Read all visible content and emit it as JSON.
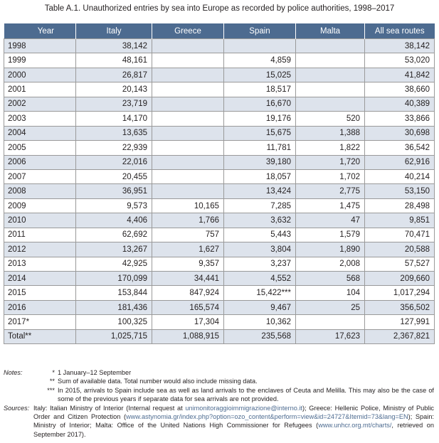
{
  "caption": "Table A.1. Unauthorized entries by sea into Europe as recorded by police authorities, 1998–2017",
  "columns": [
    "Year",
    "Italy",
    "Greece",
    "Spain",
    "Malta",
    "All sea routes"
  ],
  "rows": [
    [
      "1998",
      "38,142",
      "",
      "",
      "",
      "38,142"
    ],
    [
      "1999",
      "48,161",
      "",
      "4,859",
      "",
      "53,020"
    ],
    [
      "2000",
      "26,817",
      "",
      "15,025",
      "",
      "41,842"
    ],
    [
      "2001",
      "20,143",
      "",
      "18,517",
      "",
      "38,660"
    ],
    [
      "2002",
      "23,719",
      "",
      "16,670",
      "",
      "40,389"
    ],
    [
      "2003",
      "14,170",
      "",
      "19,176",
      "520",
      "33,866"
    ],
    [
      "2004",
      "13,635",
      "",
      "15,675",
      "1,388",
      "30,698"
    ],
    [
      "2005",
      "22,939",
      "",
      "11,781",
      "1,822",
      "36,542"
    ],
    [
      "2006",
      "22,016",
      "",
      "39,180",
      "1,720",
      "62,916"
    ],
    [
      "2007",
      "20,455",
      "",
      "18,057",
      "1,702",
      "40,214"
    ],
    [
      "2008",
      "36,951",
      "",
      "13,424",
      "2,775",
      "53,150"
    ],
    [
      "2009",
      "9,573",
      "10,165",
      "7,285",
      "1,475",
      "28,498"
    ],
    [
      "2010",
      "4,406",
      "1,766",
      "3,632",
      "47",
      "9,851"
    ],
    [
      "2011",
      "62,692",
      "757",
      "5,443",
      "1,579",
      "70,471"
    ],
    [
      "2012",
      "13,267",
      "1,627",
      "3,804",
      "1,890",
      "20,588"
    ],
    [
      "2013",
      "42,925",
      "9,357",
      "3,237",
      "2,008",
      "57,527"
    ],
    [
      "2014",
      "170,099",
      "34,441",
      "4,552",
      "568",
      "209,660"
    ],
    [
      "2015",
      "153,844",
      "847,924",
      "15,422***",
      "104",
      "1,017,294"
    ],
    [
      "2016",
      "181,436",
      "165,574",
      "9,467",
      "25",
      "356,502"
    ],
    [
      "2017*",
      "100,325",
      "17,304",
      "10,362",
      "",
      "127,991"
    ],
    [
      "Total**",
      "1,025,715",
      "1,088,915",
      "235,568",
      "17,623",
      "2,367,821"
    ]
  ],
  "notes": {
    "label": "Notes:",
    "items": [
      {
        "mark": "*",
        "text": "1 January–12 September"
      },
      {
        "mark": "**",
        "text": "Sum of available data. Total number would also include missing data."
      },
      {
        "mark": "***",
        "text": "In 2015, arrivals to Spain include sea as well as land arrivals to the enclaves of Ceuta and Melilla. This may also be the case of some of the previous years if separate data for sea arrivals are not provided."
      }
    ]
  },
  "sources": {
    "label": "Sources:",
    "italy_text": "Italy: Italian Ministry of Interior (Internal request at ",
    "italy_email": "unimonitoraggioimmigrazione@interno.it",
    "greece_text": "); Greece: Hellenic Police, Ministry of Public Order and Citizen Protection (",
    "greece_url": "www.astynomia.gr/index.php?option=ozo_content&perform=view&id=24727&Itemid=73&lang=EN",
    "spain_text": "); Spain: Ministry of Interior; Malta: Office of the United Nations High Commissioner for Refugees (",
    "malta_url": "www.unhcr.org.mt/charts/",
    "end_text": ", retrieved on September 2017)."
  },
  "colors": {
    "header_bg": "#4d6b90",
    "stripe_bg": "#dde3ec",
    "link": "#4d6b90"
  }
}
